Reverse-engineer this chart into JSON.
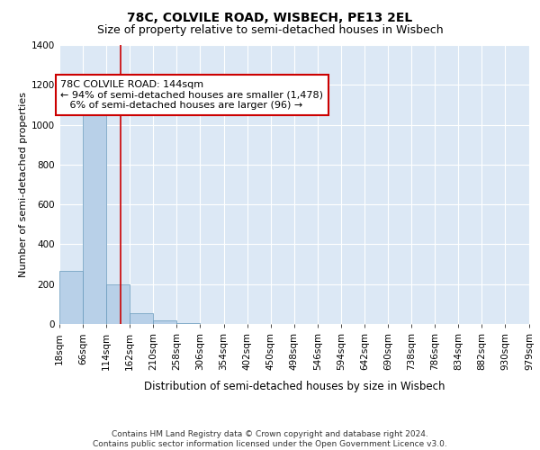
{
  "title": "78C, COLVILE ROAD, WISBECH, PE13 2EL",
  "subtitle": "Size of property relative to semi-detached houses in Wisbech",
  "xlabel": "Distribution of semi-detached houses by size in Wisbech",
  "ylabel": "Number of semi-detached properties",
  "bin_edges": [
    18,
    66,
    114,
    162,
    210,
    258,
    306,
    354,
    402,
    450,
    498,
    546,
    594,
    642,
    690,
    738,
    786,
    834,
    882,
    930,
    979
  ],
  "bin_labels": [
    "18sqm",
    "66sqm",
    "114sqm",
    "162sqm",
    "210sqm",
    "258sqm",
    "306sqm",
    "354sqm",
    "402sqm",
    "450sqm",
    "498sqm",
    "546sqm",
    "594sqm",
    "642sqm",
    "690sqm",
    "738sqm",
    "786sqm",
    "834sqm",
    "882sqm",
    "930sqm",
    "979sqm"
  ],
  "bar_heights": [
    265,
    1080,
    200,
    55,
    20,
    5,
    0,
    0,
    0,
    0,
    0,
    0,
    0,
    0,
    0,
    0,
    0,
    0,
    0,
    0
  ],
  "bar_color": "#b8d0e8",
  "bar_edge_color": "#6699bb",
  "property_size": 144,
  "vline_color": "#cc0000",
  "annotation_line1": "78C COLVILE ROAD: 144sqm",
  "annotation_line2": "← 94% of semi-detached houses are smaller (1,478)",
  "annotation_line3": "   6% of semi-detached houses are larger (96) →",
  "annotation_box_color": "white",
  "annotation_box_edge_color": "#cc0000",
  "ylim": [
    0,
    1400
  ],
  "yticks": [
    0,
    200,
    400,
    600,
    800,
    1000,
    1200,
    1400
  ],
  "footer_line1": "Contains HM Land Registry data © Crown copyright and database right 2024.",
  "footer_line2": "Contains public sector information licensed under the Open Government Licence v3.0.",
  "bg_color": "#dce8f5",
  "title_fontsize": 10,
  "subtitle_fontsize": 9,
  "ylabel_fontsize": 8,
  "xlabel_fontsize": 8.5,
  "tick_fontsize": 7.5,
  "annotation_fontsize": 8,
  "footer_fontsize": 6.5
}
